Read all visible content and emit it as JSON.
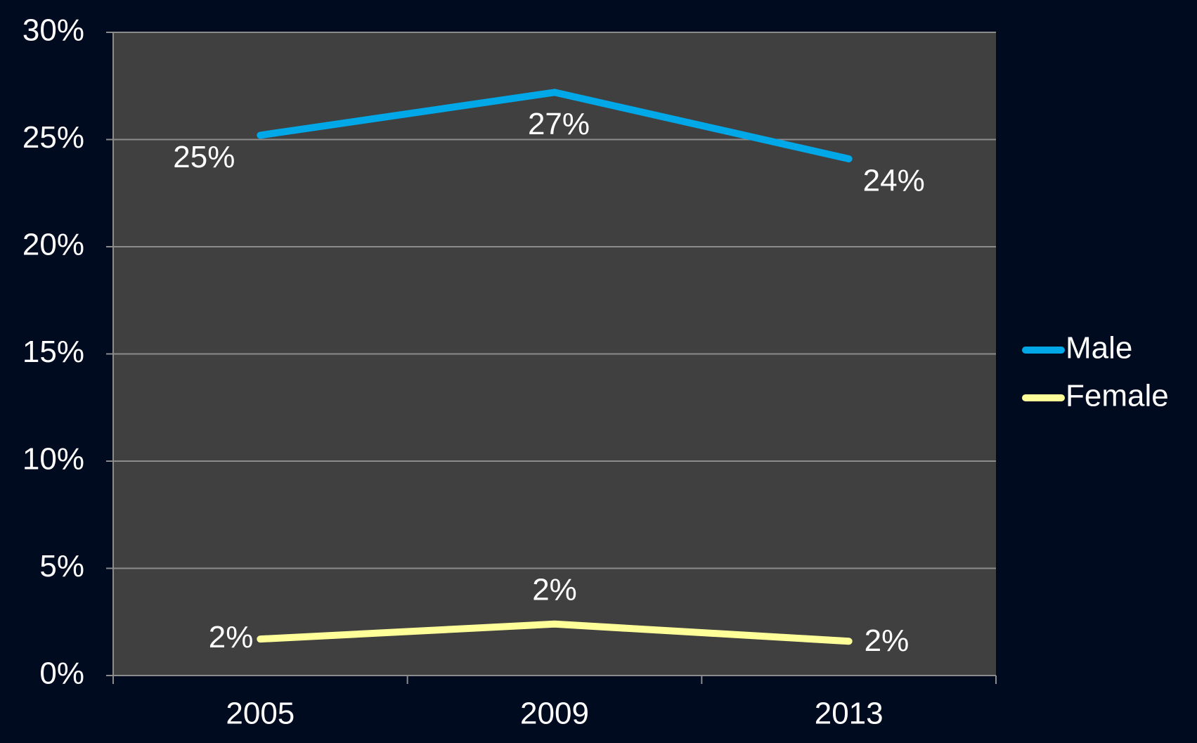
{
  "chart_data": {
    "type": "line",
    "categories": [
      "2005",
      "2009",
      "2013"
    ],
    "series": [
      {
        "name": "Male",
        "color": "#00a8e8",
        "values": [
          25.2,
          27.2,
          24.1
        ],
        "value_labels": [
          "25%",
          "27%",
          "24%"
        ]
      },
      {
        "name": "Female",
        "color": "#ffff99",
        "values": [
          1.7,
          2.4,
          1.6
        ],
        "value_labels": [
          "2%",
          "2%",
          "2%"
        ]
      }
    ],
    "ylim": [
      0,
      30
    ],
    "yticks": [
      {
        "value": 0,
        "label": "0%"
      },
      {
        "value": 5,
        "label": "5%"
      },
      {
        "value": 10,
        "label": "10%"
      },
      {
        "value": 15,
        "label": "15%"
      },
      {
        "value": 20,
        "label": "20%"
      },
      {
        "value": 25,
        "label": "25%"
      },
      {
        "value": 30,
        "label": "30%"
      }
    ],
    "grid": true,
    "legend": "right"
  }
}
